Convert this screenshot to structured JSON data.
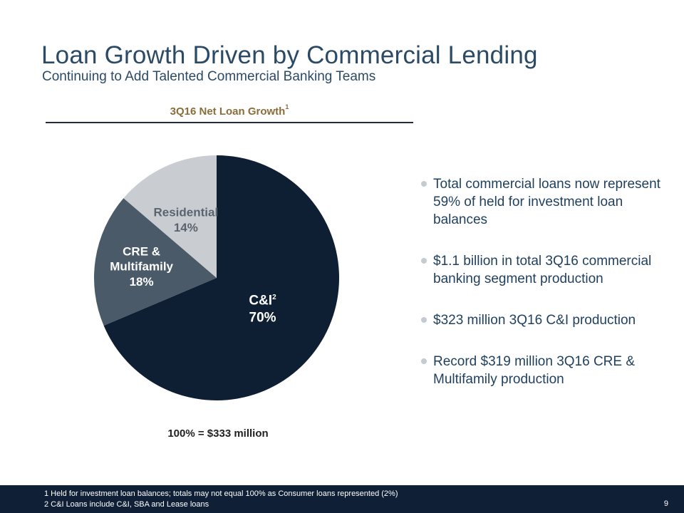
{
  "title": "Loan Growth Driven by Commercial Lending",
  "subtitle": "Continuing to Add Talented Commercial Banking Teams",
  "chart_data": {
    "type": "pie",
    "title": "3Q16 Net Loan Growth",
    "title_footnote": "1",
    "total_label": "100% = $333 million",
    "slices": [
      {
        "name": "C&I",
        "footnote": "2",
        "value": 70,
        "label": "70%",
        "color": "#0f1f33",
        "text_color": "#ffffff"
      },
      {
        "name": "CRE & Multifamily",
        "lines": [
          "CRE &",
          "Multifamily"
        ],
        "value": 18,
        "label": "18%",
        "color": "#4a5a68",
        "text_color": "#ffffff"
      },
      {
        "name": "Residential",
        "value": 14,
        "label": "14%",
        "color": "#c9cdd1",
        "text_color": "#5a6470"
      }
    ]
  },
  "bullets": [
    "Total commercial loans now represent 59% of held for investment loan balances",
    "$1.1 billion in total 3Q16 commercial banking segment production",
    "$323 million 3Q16 C&I production",
    "Record $319 million 3Q16 CRE & Multifamily production"
  ],
  "footnotes": [
    "1  Held for investment loan balances; totals may not equal 100% as Consumer loans represented (2%)",
    "2  C&I Loans include C&I, SBA and Lease loans"
  ],
  "page_number": "9"
}
